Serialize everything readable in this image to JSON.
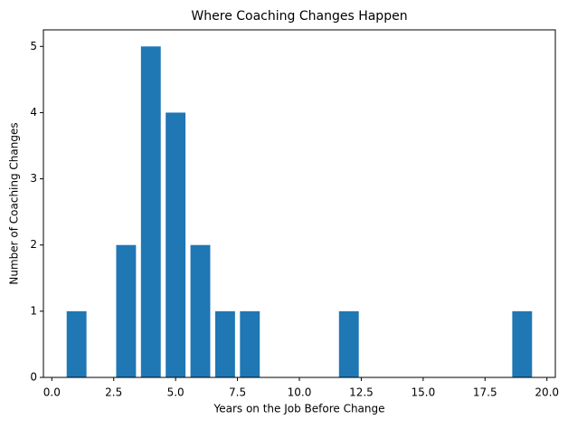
{
  "chart_data": {
    "type": "bar",
    "title": "Where Coaching Changes Happen",
    "xlabel": "Years on the Job Before Change",
    "ylabel": "Number of Coaching Changes",
    "x": [
      1,
      3,
      4,
      5,
      6,
      7,
      8,
      12,
      19
    ],
    "values": [
      1,
      2,
      5,
      4,
      2,
      1,
      1,
      1,
      1
    ],
    "color": "#1f77b4",
    "xlim": [
      -0.34,
      20.34
    ],
    "xticks": [
      {
        "value": 0,
        "label": "0.0"
      },
      2.5,
      {
        "value": 5,
        "label": "5.0"
      },
      7.5,
      {
        "value": 10,
        "label": "10.0"
      },
      12.5,
      {
        "value": 15,
        "label": "15.0"
      },
      17.5,
      {
        "value": 20,
        "label": "20.0"
      }
    ],
    "ylim": [
      0,
      5.25
    ],
    "yticks": [
      0,
      1,
      2,
      3,
      4,
      5
    ],
    "grid": false
  }
}
